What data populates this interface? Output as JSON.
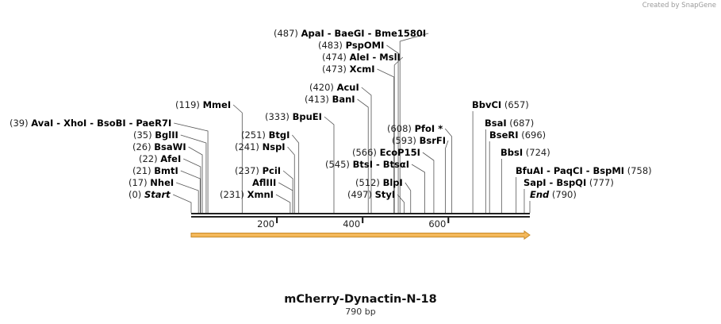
{
  "watermark": "Created by SnapGene",
  "title": "mCherry-Dynactin-N-18",
  "length_label": "790 bp",
  "sequence_length": 790,
  "ticks": [
    {
      "pos": 200,
      "label": "200"
    },
    {
      "pos": 400,
      "label": "400"
    },
    {
      "pos": 600,
      "label": "600"
    }
  ],
  "colors": {
    "feature_fill": "#f4b85a",
    "feature_edge": "#c78a2a",
    "line": "#555555",
    "backbone": "#222222"
  },
  "sites": [
    {
      "num": "(487)",
      "text": "ApaI  - BaeGI  - Bme1580I",
      "pos": 487
    },
    {
      "num": "(483)",
      "text": "PspOMI",
      "pos": 483
    },
    {
      "num": "(474)",
      "text": "AleI  - MslI",
      "pos": 474
    },
    {
      "num": "(473)",
      "text": "XcmI",
      "pos": 473
    },
    {
      "num": "(420)",
      "text": "AcuI",
      "pos": 420
    },
    {
      "num": "(413)",
      "text": "BanI",
      "pos": 413
    },
    {
      "num": "(119)",
      "text": "MmeI",
      "pos": 119
    },
    {
      "num": "(333)",
      "text": "BpuEI",
      "pos": 333
    },
    {
      "num": "(39)",
      "text": "AvaI  - XhoI  - BsoBI  - PaeR7I",
      "pos": 39
    },
    {
      "num": "(608)",
      "text": "PfoI *",
      "pos": 608
    },
    {
      "num": "(35)",
      "text": "BglII",
      "pos": 35
    },
    {
      "num": "(251)",
      "text": "BtgI",
      "pos": 251
    },
    {
      "num": "(593)",
      "text": "BsrFI",
      "pos": 593
    },
    {
      "num": "(26)",
      "text": "BsaWI",
      "pos": 26
    },
    {
      "num": "(241)",
      "text": "NspI",
      "pos": 241
    },
    {
      "num": "(566)",
      "text": "EcoP15I",
      "pos": 566
    },
    {
      "num": "(22)",
      "text": "AfeI",
      "pos": 22
    },
    {
      "num": "(545)",
      "text": "BtsI  - BtsαI",
      "pos": 545
    },
    {
      "num": "(21)",
      "text": "BmtI",
      "pos": 21
    },
    {
      "num": "(237)",
      "text": "PciI",
      "pos": 237
    },
    {
      "num": "(17)",
      "text": "NheI",
      "pos": 17
    },
    {
      "num": "",
      "text": "AflIII",
      "pos": 237
    },
    {
      "num": "(512)",
      "text": "BlpI",
      "pos": 512
    },
    {
      "num": "(0)",
      "text": "Start",
      "pos": 0,
      "italic": true
    },
    {
      "num": "(231)",
      "text": "XmnI",
      "pos": 231
    },
    {
      "num": "(497)",
      "text": "StyI",
      "pos": 497
    },
    {
      "num": "(657)",
      "text": "BbvCI",
      "pos": 657,
      "right": true
    },
    {
      "num": "(687)",
      "text": "BsaI",
      "pos": 687,
      "right": true
    },
    {
      "num": "(696)",
      "text": "BseRI",
      "pos": 696,
      "right": true
    },
    {
      "num": "(724)",
      "text": "BbsI",
      "pos": 724,
      "right": true
    },
    {
      "num": "(758)",
      "text": "BfuAI  - PaqCI  - BspMI",
      "pos": 758,
      "right": true
    },
    {
      "num": "(777)",
      "text": "SapI  - BspQI",
      "pos": 777,
      "right": true
    },
    {
      "num": "(790)",
      "text": "End",
      "pos": 790,
      "italic": true,
      "right": true
    }
  ],
  "feature": {
    "start": 0,
    "end": 790,
    "direction": "forward"
  }
}
